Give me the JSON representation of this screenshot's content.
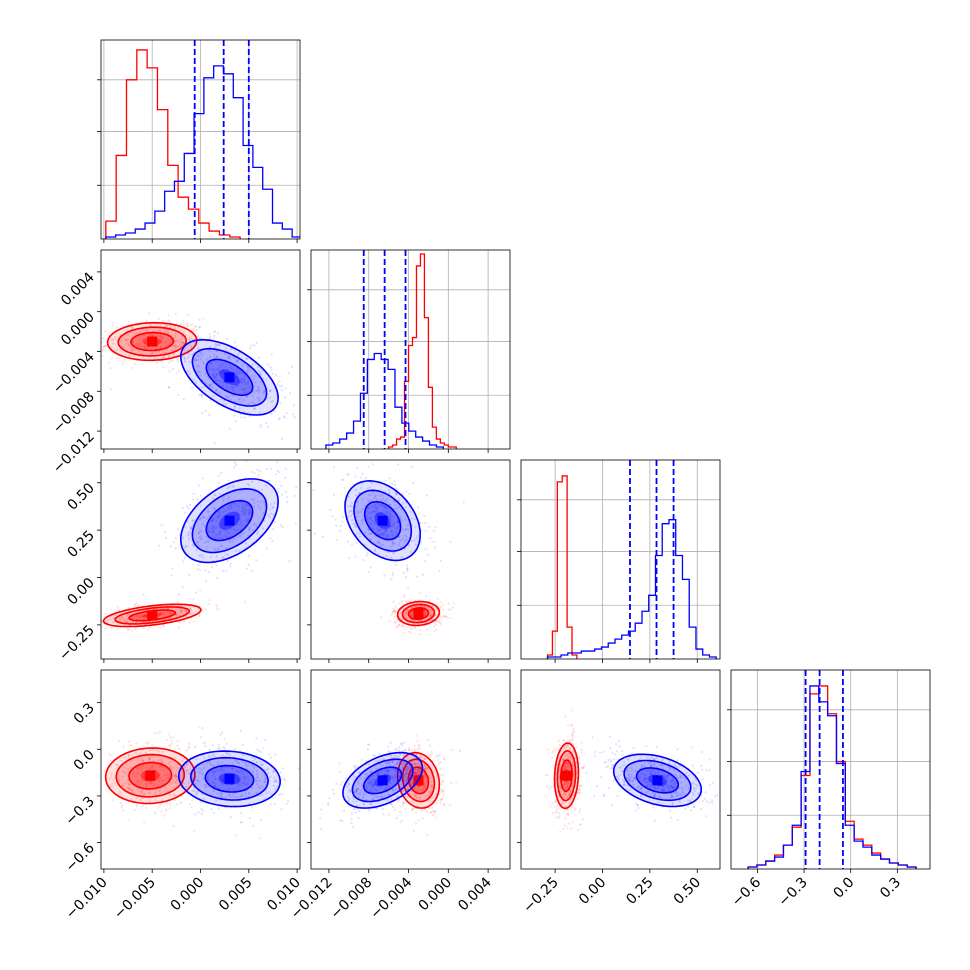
{
  "colors": {
    "red": "#ff0000",
    "blue": "#0000ff",
    "grid": "#b0b0b0"
  },
  "chart_data": {
    "type": "corner",
    "params": [
      {
        "ticks": [
          -0.01,
          -0.005,
          0.0,
          0.005,
          0.01
        ],
        "tick_labels": [
          "−0.010",
          "−0.005",
          "0.000",
          "0.005",
          "0.010"
        ],
        "range": [
          -0.0103,
          0.0103
        ]
      },
      {
        "ticks": [
          -0.012,
          -0.008,
          -0.004,
          0.0,
          0.004
        ],
        "tick_labels": [
          "−0.012",
          "−0.008",
          "−0.004",
          "0.000",
          "0.004"
        ],
        "range": [
          -0.0138,
          0.0062
        ]
      },
      {
        "ticks": [
          -0.25,
          0.0,
          0.25,
          0.5
        ],
        "tick_labels": [
          "−0.25",
          "0.00",
          "0.25",
          "0.50"
        ],
        "range": [
          -0.43,
          0.62
        ]
      },
      {
        "ticks": [
          -0.6,
          -0.3,
          0.0,
          0.3
        ],
        "tick_labels": [
          "−0.6",
          "−0.3",
          "0.0",
          "0.3"
        ],
        "range": [
          -0.77,
          0.51
        ]
      }
    ],
    "diagonal": [
      {
        "blue_quantiles": [
          -0.0006,
          0.0024,
          0.005
        ],
        "red_hist": {
          "x0": -0.0098,
          "x1": 0.0041,
          "counts": [
            0.09,
            0.42,
            0.8,
            0.95,
            0.86,
            0.65,
            0.37,
            0.21,
            0.15,
            0.08,
            0.04,
            0.02,
            0.01
          ]
        },
        "blue_hist": {
          "x0": -0.0098,
          "x1": 0.0105,
          "counts": [
            0.01,
            0.02,
            0.03,
            0.05,
            0.08,
            0.14,
            0.24,
            0.29,
            0.43,
            0.63,
            0.81,
            0.87,
            0.83,
            0.71,
            0.47,
            0.36,
            0.25,
            0.08,
            0.05,
            0.01
          ]
        }
      },
      {
        "blue_quantiles": [
          -0.0085,
          -0.0064,
          -0.0043
        ],
        "red_hist": {
          "x0": -0.006,
          "x1": 0.0008,
          "counts": [
            0.01,
            0.02,
            0.05,
            0.06,
            0.34,
            0.52,
            0.56,
            0.92,
            0.98,
            0.66,
            0.31,
            0.11,
            0.05,
            0.03,
            0.02,
            0.01,
            0.01
          ]
        },
        "blue_hist": {
          "x0": -0.0123,
          "x1": -0.0005,
          "counts": [
            0.02,
            0.03,
            0.05,
            0.08,
            0.14,
            0.28,
            0.45,
            0.48,
            0.45,
            0.4,
            0.21,
            0.13,
            0.09,
            0.06,
            0.04,
            0.02,
            0.01
          ]
        }
      },
      {
        "blue_quantiles": [
          0.145,
          0.285,
          0.375
        ],
        "red_hist": {
          "x0": -0.29,
          "x1": -0.135,
          "counts": [
            0.02,
            0.14,
            0.89,
            0.92,
            0.16,
            0.02
          ]
        },
        "blue_hist": {
          "x0": -0.29,
          "x1": 0.6,
          "counts": [
            0.01,
            0.01,
            0.02,
            0.03,
            0.03,
            0.04,
            0.04,
            0.05,
            0.06,
            0.08,
            0.1,
            0.12,
            0.14,
            0.18,
            0.24,
            0.32,
            0.52,
            0.68,
            0.7,
            0.52,
            0.4,
            0.16,
            0.05,
            0.02,
            0.01
          ]
        }
      },
      {
        "blue_quantiles": [
          -0.29,
          -0.2,
          -0.05
        ],
        "red_hist": {
          "x0": -0.66,
          "x1": 0.42,
          "counts": [
            0.01,
            0.02,
            0.04,
            0.07,
            0.12,
            0.21,
            0.47,
            0.88,
            0.92,
            0.78,
            0.54,
            0.24,
            0.15,
            0.12,
            0.08,
            0.05,
            0.03,
            0.02,
            0.01
          ]
        },
        "blue_hist": {
          "x0": -0.66,
          "x1": 0.42,
          "counts": [
            0.01,
            0.02,
            0.04,
            0.06,
            0.12,
            0.22,
            0.49,
            0.92,
            0.84,
            0.77,
            0.53,
            0.22,
            0.14,
            0.11,
            0.07,
            0.05,
            0.03,
            0.02,
            0.01
          ]
        }
      }
    ],
    "pairs": [
      {
        "x": 0,
        "y": 1,
        "red": {
          "mean": [
            -0.005,
            -0.003
          ],
          "sd": [
            0.0022,
            0.0009
          ],
          "rho": 0.05
        },
        "blue": {
          "mean": [
            0.003,
            -0.0066
          ],
          "sd": [
            0.0024,
            0.0018
          ],
          "rho": -0.55
        }
      },
      {
        "x": 0,
        "y": 2,
        "red": {
          "mean": [
            -0.005,
            -0.2
          ],
          "sd": [
            0.0024,
            0.028
          ],
          "rho": 0.5
        },
        "blue": {
          "mean": [
            0.003,
            0.3
          ],
          "sd": [
            0.0024,
            0.105
          ],
          "rho": 0.45
        }
      },
      {
        "x": 1,
        "y": 2,
        "red": {
          "mean": [
            -0.003,
            -0.19
          ],
          "sd": [
            0.001,
            0.03
          ],
          "rho": 0.1
        },
        "blue": {
          "mean": [
            -0.0066,
            0.3
          ],
          "sd": [
            0.0018,
            0.1
          ],
          "rho": -0.35
        }
      },
      {
        "x": 0,
        "y": 3,
        "red": {
          "mean": [
            -0.0052,
            -0.17
          ],
          "sd": [
            0.0022,
            0.085
          ],
          "rho": 0.05
        },
        "blue": {
          "mean": [
            0.003,
            -0.19
          ],
          "sd": [
            0.0025,
            0.085
          ],
          "rho": -0.1
        }
      },
      {
        "x": 1,
        "y": 3,
        "red": {
          "mean": [
            -0.003,
            -0.2
          ],
          "sd": [
            0.001,
            0.085
          ],
          "rho": -0.15
        },
        "blue": {
          "mean": [
            -0.0066,
            -0.2
          ],
          "sd": [
            0.0019,
            0.085
          ],
          "rho": 0.45
        }
      },
      {
        "x": 2,
        "y": 3,
        "red": {
          "mean": [
            -0.19,
            -0.17
          ],
          "sd": [
            0.03,
            0.1
          ],
          "rho": 0.1
        },
        "blue": {
          "mean": [
            0.29,
            -0.2
          ],
          "sd": [
            0.11,
            0.08
          ],
          "rho": -0.35
        }
      }
    ],
    "grid": true
  }
}
